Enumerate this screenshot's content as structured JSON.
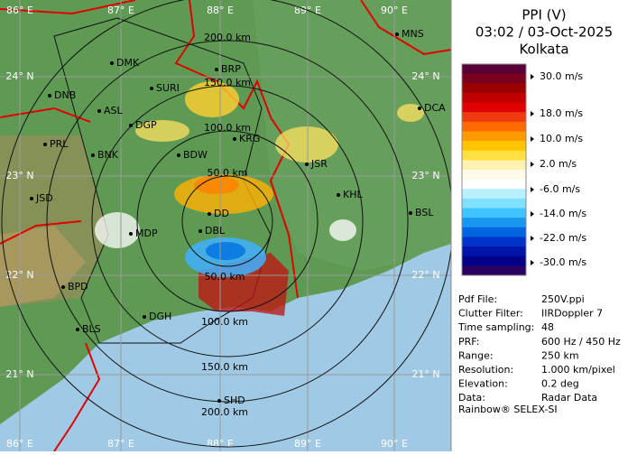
{
  "panel": {
    "title_lines": [
      "PPI (V)",
      "03:02 / 03-Oct-2025",
      "Kolkata"
    ],
    "scale_colors": [
      "#5a0038",
      "#7a0020",
      "#9a0000",
      "#c00000",
      "#e00000",
      "#f03a10",
      "#ff6a00",
      "#ff9a00",
      "#ffc400",
      "#ffe040",
      "#fff2b0",
      "#fffbe8",
      "#ffffff",
      "#b8f0ff",
      "#80e0ff",
      "#40c4ff",
      "#1896f0",
      "#0064e0",
      "#0034c8",
      "#0014a8",
      "#000088",
      "#2a0060"
    ],
    "scale_labels": [
      "30.0 m/s",
      "18.0 m/s",
      "10.0 m/s",
      "2.0 m/s",
      "-6.0 m/s",
      "-14.0 m/s",
      "-22.0 m/s",
      "-30.0 m/s"
    ],
    "info": [
      [
        "Pdf File:",
        "250V.ppi"
      ],
      [
        "Clutter Filter:",
        "IIRDoppler 7"
      ],
      [
        "Time sampling:",
        "48"
      ],
      [
        "PRF:",
        "600 Hz / 450 Hz"
      ],
      [
        "Range:",
        "250 km"
      ],
      [
        "Resolution:",
        "1.000 km/pixel"
      ],
      [
        "Elevation:",
        "0.2 deg"
      ],
      [
        "Data:",
        "Radar Data"
      ]
    ],
    "footer": "Rainbow® SELEX-SI"
  },
  "map": {
    "lon_labels": [
      "86° E",
      "87° E",
      "88° E",
      "89° E",
      "90° E"
    ],
    "lat_labels": [
      "24° N",
      "23° N",
      "22° N",
      "21° N"
    ],
    "ring_labels": [
      "50.0 km",
      "100.0 km",
      "150.0 km",
      "200.0 km"
    ],
    "cities": [
      "MNS",
      "DMK",
      "BRP",
      "DNB",
      "SURI",
      "ASL",
      "DGP",
      "DCA",
      "PRL",
      "BNK",
      "BDW",
      "KRG",
      "JSR",
      "JSD",
      "KHL",
      "DD",
      "BSL",
      "MDP",
      "DBL",
      "BPD",
      "DGH",
      "BLS",
      "SHD"
    ]
  }
}
